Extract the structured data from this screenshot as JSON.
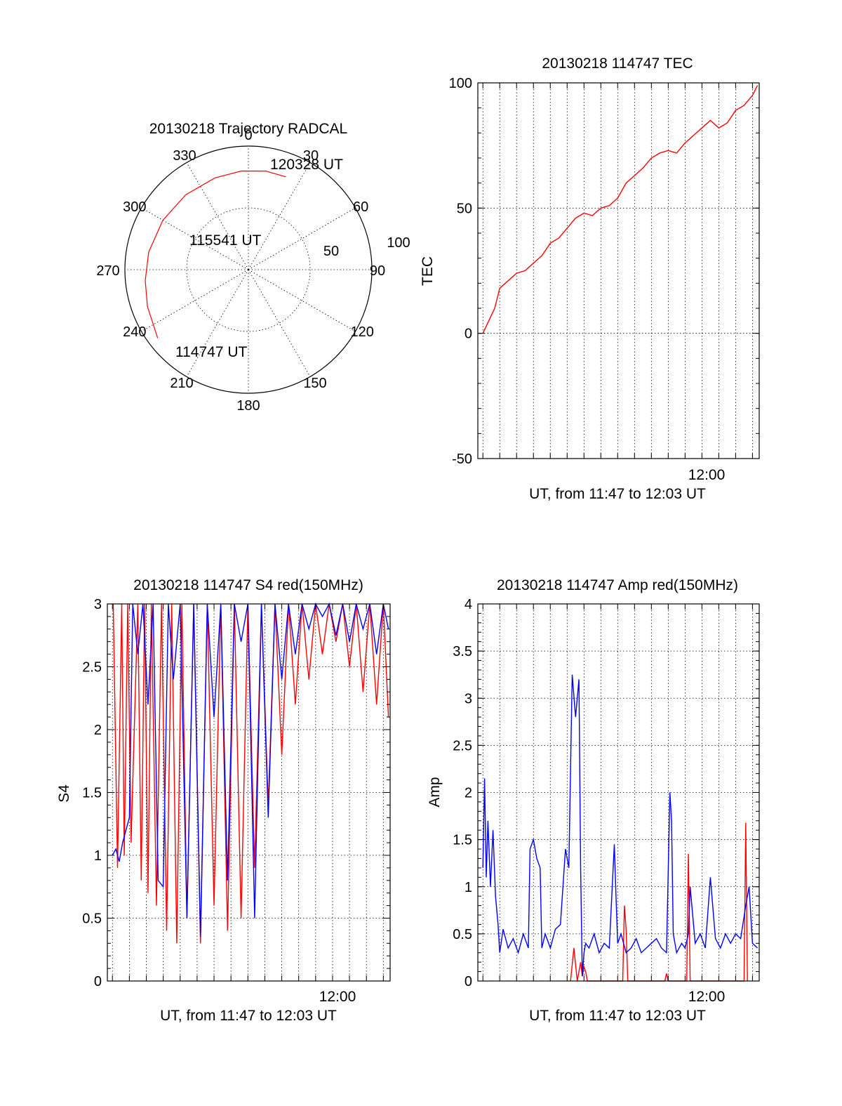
{
  "colors": {
    "red": "#ff0000",
    "blue": "#0000ff",
    "axis": "#000000",
    "background": "#ffffff"
  },
  "chart_data": [
    {
      "id": "trajectory",
      "type": "polar",
      "title": "20130218 Trajectory RADCAL",
      "angle_labels": [
        "0",
        "30",
        "60",
        "90",
        "120",
        "150",
        "180",
        "210",
        "240",
        "270",
        "300",
        "330"
      ],
      "radial_labels": [
        "50",
        "100"
      ],
      "track_label_start": "114747 UT",
      "track_label_mid": "115541 UT",
      "track_label_end": "120328 UT",
      "track": [
        {
          "az": 233,
          "r": 92
        },
        {
          "az": 250,
          "r": 87
        },
        {
          "az": 264,
          "r": 84
        },
        {
          "az": 280,
          "r": 82
        },
        {
          "az": 300,
          "r": 80
        },
        {
          "az": 320,
          "r": 79
        },
        {
          "az": 340,
          "r": 79
        },
        {
          "az": 356,
          "r": 80
        },
        {
          "az": 10,
          "r": 81
        },
        {
          "az": 22,
          "r": 81
        }
      ],
      "series_color": "red"
    },
    {
      "id": "tec",
      "type": "line",
      "title": "20130218 114747 TEC",
      "ylabel": "TEC",
      "xlabel": "UT, from 11:47 to 12:03 UT",
      "xtick_label": "12:00",
      "ylim": [
        -50,
        100
      ],
      "yticks": [
        -50,
        0,
        50,
        100
      ],
      "xlim_minutes": [
        -0.3,
        16.4
      ],
      "time_unit": "minutes after 11:47 UT",
      "grid": true,
      "series": [
        {
          "color": "red",
          "x": [
            0,
            0.35,
            0.7,
            1.0,
            1.5,
            2.0,
            2.5,
            3.0,
            3.5,
            4.0,
            4.5,
            5.0,
            5.5,
            6.0,
            6.5,
            7.0,
            7.5,
            8.0,
            8.5,
            9.0,
            9.5,
            10.0,
            10.5,
            11.0,
            11.5,
            12.0,
            12.5,
            13.0,
            13.5,
            14.0,
            14.5,
            15.0,
            15.5,
            16.0,
            16.3
          ],
          "y": [
            0,
            5,
            10,
            18,
            21,
            24,
            25,
            28,
            31,
            36,
            38,
            42,
            46,
            48,
            47,
            50,
            51,
            54,
            60,
            63,
            66,
            70,
            72,
            73,
            72,
            76,
            79,
            82,
            85,
            82,
            84,
            89,
            91,
            95,
            99
          ]
        }
      ]
    },
    {
      "id": "s4",
      "type": "line",
      "title": "20130218 114747 S4 red(150MHz)",
      "ylabel": "S4",
      "xlabel": "UT, from 11:47 to 12:03 UT",
      "xtick_label": "12:00",
      "ylim": [
        0,
        3
      ],
      "yticks": [
        0,
        0.5,
        1,
        1.5,
        2,
        2.5,
        3
      ],
      "ytick_labels": [
        "0",
        "0.5",
        "1",
        "1.5",
        "2",
        "2.5",
        "3"
      ],
      "xlim_minutes": [
        -0.3,
        16.4
      ],
      "time_unit": "minutes after 11:47 UT",
      "grid": true,
      "series": [
        {
          "color": "red",
          "x": [
            0.05,
            0.3,
            0.55,
            0.7,
            0.9,
            1.1,
            1.5,
            1.7,
            1.9,
            2.1,
            2.3,
            2.6,
            2.9,
            3.2,
            3.5,
            3.8,
            4.1,
            4.4,
            4.8,
            5.2,
            5.6,
            6.0,
            6.4,
            6.8,
            7.2,
            7.6,
            8.0,
            8.4,
            8.8,
            9.2,
            9.6,
            10.0,
            10.4,
            10.8,
            11.2,
            11.6,
            12.0,
            12.4,
            12.8,
            13.2,
            13.6,
            14.0,
            14.4,
            14.8,
            15.2,
            15.6,
            16.0,
            16.3
          ],
          "y": [
            3,
            0.9,
            3,
            1.0,
            3,
            1.1,
            3,
            0.8,
            3,
            0.7,
            3,
            0.6,
            3,
            0.4,
            3,
            0.3,
            3,
            0.5,
            3,
            0.3,
            3,
            0.6,
            3,
            0.4,
            3,
            0.5,
            3,
            0.9,
            3,
            1.4,
            3,
            1.8,
            3,
            2.2,
            3,
            2.4,
            3,
            2.6,
            3,
            2.7,
            3,
            2.5,
            3,
            2.3,
            3,
            2.2,
            3,
            2.1
          ]
        },
        {
          "color": "blue",
          "x": [
            0,
            0.2,
            0.4,
            0.6,
            0.8,
            1.0,
            1.2,
            1.5,
            1.8,
            2.1,
            2.4,
            2.7,
            3.0,
            3.3,
            3.6,
            4.0,
            4.4,
            4.8,
            5.2,
            5.6,
            6.0,
            6.4,
            6.8,
            7.2,
            7.6,
            8.0,
            8.4,
            8.8,
            9.2,
            9.6,
            10.0,
            10.4,
            10.8,
            11.2,
            11.6,
            12.0,
            12.4,
            12.8,
            13.2,
            13.6,
            14.0,
            14.4,
            14.8,
            15.2,
            15.6,
            16.0,
            16.3
          ],
          "y": [
            1.0,
            1.05,
            0.95,
            1.1,
            1.2,
            1.3,
            3,
            2.6,
            3,
            2.2,
            3,
            0.8,
            0.75,
            3,
            2.4,
            3,
            0.5,
            3,
            0.35,
            3,
            2.1,
            3,
            0.8,
            3,
            2.7,
            3,
            0.5,
            3,
            1.3,
            3,
            2.4,
            3,
            2.6,
            3,
            2.8,
            3,
            2.9,
            3,
            2.75,
            3,
            2.7,
            3,
            2.8,
            3,
            2.6,
            3,
            2.8
          ]
        }
      ]
    },
    {
      "id": "amp",
      "type": "line",
      "title": "20130218 114747 Amp red(150MHz)",
      "ylabel": "Amp",
      "xlabel": "UT, from 11:47 to 12:03 UT",
      "xtick_label": "12:00",
      "ylim": [
        0,
        4
      ],
      "yticks": [
        0,
        0.5,
        1,
        1.5,
        2,
        2.5,
        3,
        3.5,
        4
      ],
      "ytick_labels": [
        "0",
        "0.5",
        "1",
        "1.5",
        "2",
        "2.5",
        "3",
        "3.5",
        "4"
      ],
      "xlim_minutes": [
        -0.3,
        16.4
      ],
      "time_unit": "minutes after 11:47 UT",
      "grid": true,
      "series": [
        {
          "color": "red",
          "x": [
            5.2,
            5.4,
            5.6,
            5.8,
            5.9,
            6.0,
            6.1,
            6.2,
            8.3,
            8.4,
            8.5,
            8.6,
            10.8,
            10.9,
            11.0,
            12.1,
            12.2,
            12.3,
            15.5,
            15.6,
            15.7
          ],
          "y": [
            0,
            0.35,
            0,
            0.2,
            0.05,
            0.15,
            0.1,
            0,
            0,
            0.8,
            0.55,
            0,
            0,
            0.08,
            0,
            0,
            1.35,
            0,
            0,
            1.68,
            0
          ]
        },
        {
          "color": "blue",
          "x": [
            0,
            0.1,
            0.2,
            0.3,
            0.45,
            0.6,
            0.75,
            0.9,
            1.0,
            1.2,
            1.5,
            1.8,
            2.1,
            2.4,
            2.7,
            2.8,
            3.0,
            3.2,
            3.4,
            3.5,
            3.7,
            4.0,
            4.3,
            4.6,
            4.9,
            5.1,
            5.3,
            5.5,
            5.7,
            5.8,
            5.9,
            6.0,
            6.1,
            6.3,
            6.6,
            6.9,
            7.2,
            7.5,
            7.8,
            7.9,
            8.0,
            8.2,
            8.5,
            8.8,
            9.1,
            9.4,
            9.7,
            10.0,
            10.3,
            10.6,
            10.9,
            11.1,
            11.2,
            11.3,
            11.5,
            11.8,
            12.0,
            12.2,
            12.3,
            12.6,
            12.9,
            13.2,
            13.5,
            13.8,
            14.1,
            14.4,
            14.7,
            15.0,
            15.3,
            15.6,
            15.8,
            16.0,
            16.3
          ],
          "y": [
            1.2,
            2.15,
            1.1,
            1.7,
            1.0,
            1.6,
            0.9,
            0.6,
            0.3,
            0.55,
            0.35,
            0.45,
            0.3,
            0.5,
            0.35,
            1.4,
            1.5,
            1.3,
            1.2,
            0.35,
            0.5,
            0.35,
            0.55,
            0.6,
            1.4,
            1.2,
            3.25,
            2.8,
            3.2,
            1.2,
            0.05,
            0.3,
            0.4,
            0.35,
            0.5,
            0.3,
            0.4,
            0.35,
            1.45,
            0.9,
            0.4,
            0.5,
            0.3,
            0.35,
            0.45,
            0.3,
            0.35,
            0.4,
            0.45,
            0.35,
            0.3,
            2.0,
            1.7,
            0.5,
            0.3,
            0.4,
            0.35,
            0.5,
            1.0,
            0.4,
            0.5,
            0.35,
            1.1,
            0.45,
            0.35,
            0.5,
            0.4,
            0.5,
            0.45,
            0.8,
            1.0,
            0.4,
            0.35
          ]
        }
      ]
    }
  ]
}
